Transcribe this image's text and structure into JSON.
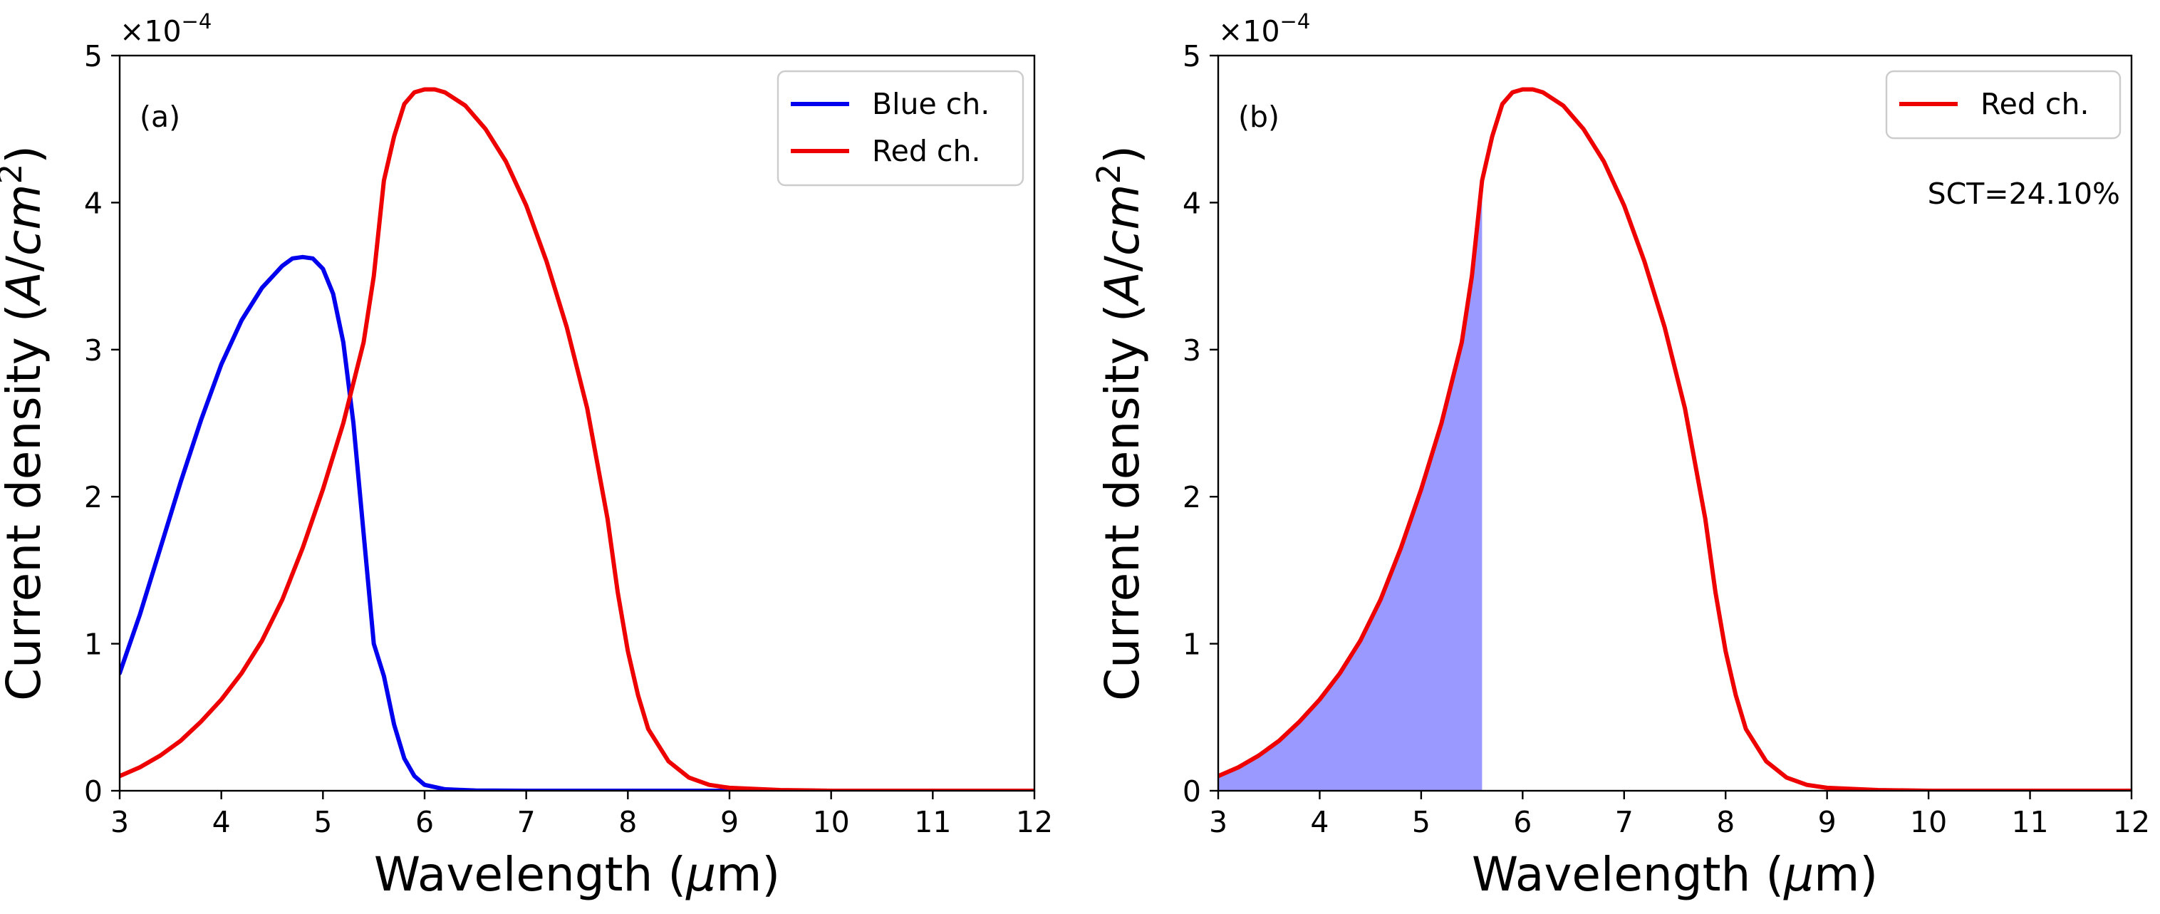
{
  "chart_data": [
    {
      "type": "line",
      "panel_label": "(a)",
      "xlabel": {
        "prefix": "Wavelength (",
        "mu": "μ",
        "unit": "m",
        "suffix": ")"
      },
      "ylabel": {
        "prefix": "Current density (",
        "unit_a": "A",
        "slash": "/",
        "unit_cm": "cm",
        "power": "2",
        "suffix": ")"
      },
      "y_offset": {
        "base": "×10",
        "exp": "−4"
      },
      "xlim": [
        3,
        12
      ],
      "ylim": [
        0,
        5
      ],
      "x_ticks": [
        "3",
        "4",
        "5",
        "6",
        "7",
        "8",
        "9",
        "10",
        "11",
        "12"
      ],
      "y_ticks": [
        "0",
        "1",
        "2",
        "3",
        "4",
        "5"
      ],
      "legend": {
        "position": "top-right",
        "entries": [
          "Blue ch.",
          "Red ch."
        ]
      },
      "series": [
        {
          "name": "Blue ch.",
          "color": "#0000ee",
          "x": [
            3.0,
            3.2,
            3.4,
            3.6,
            3.8,
            4.0,
            4.2,
            4.4,
            4.6,
            4.7,
            4.8,
            4.9,
            5.0,
            5.1,
            5.2,
            5.3,
            5.4,
            5.5,
            5.6,
            5.7,
            5.8,
            5.9,
            6.0,
            6.2,
            6.5,
            7.0,
            8.0,
            9.0,
            10.0,
            11.0,
            12.0
          ],
          "y": [
            0.8,
            1.2,
            1.65,
            2.1,
            2.52,
            2.9,
            3.2,
            3.42,
            3.57,
            3.62,
            3.63,
            3.62,
            3.55,
            3.38,
            3.05,
            2.5,
            1.75,
            1.0,
            0.78,
            0.45,
            0.22,
            0.1,
            0.04,
            0.01,
            0.002,
            0.0,
            0.0,
            0.0,
            0.0,
            0.0,
            0.0
          ]
        },
        {
          "name": "Red ch.",
          "color": "#ee0000",
          "x": [
            3.0,
            3.2,
            3.4,
            3.6,
            3.8,
            4.0,
            4.2,
            4.4,
            4.6,
            4.8,
            5.0,
            5.2,
            5.4,
            5.5,
            5.6,
            5.7,
            5.8,
            5.9,
            6.0,
            6.1,
            6.2,
            6.4,
            6.6,
            6.8,
            7.0,
            7.2,
            7.4,
            7.6,
            7.8,
            7.9,
            8.0,
            8.1,
            8.2,
            8.4,
            8.6,
            8.8,
            9.0,
            9.5,
            10.0,
            11.0,
            12.0
          ],
          "y": [
            0.1,
            0.16,
            0.24,
            0.34,
            0.47,
            0.62,
            0.8,
            1.02,
            1.3,
            1.65,
            2.05,
            2.5,
            3.05,
            3.5,
            4.15,
            4.45,
            4.67,
            4.75,
            4.77,
            4.77,
            4.75,
            4.66,
            4.5,
            4.28,
            3.98,
            3.6,
            3.15,
            2.6,
            1.85,
            1.35,
            0.95,
            0.65,
            0.42,
            0.2,
            0.09,
            0.04,
            0.02,
            0.005,
            0.0,
            0.0,
            0.0
          ]
        }
      ]
    },
    {
      "type": "area",
      "panel_label": "(b)",
      "xlabel": {
        "prefix": "Wavelength (",
        "mu": "μ",
        "unit": "m",
        "suffix": ")"
      },
      "ylabel": {
        "prefix": "Current density (",
        "unit_a": "A",
        "slash": "/",
        "unit_cm": "cm",
        "power": "2",
        "suffix": ")"
      },
      "y_offset": {
        "base": "×10",
        "exp": "−4"
      },
      "xlim": [
        3,
        12
      ],
      "ylim": [
        0,
        5
      ],
      "x_ticks": [
        "3",
        "4",
        "5",
        "6",
        "7",
        "8",
        "9",
        "10",
        "11",
        "12"
      ],
      "y_ticks": [
        "0",
        "1",
        "2",
        "3",
        "4",
        "5"
      ],
      "legend": {
        "position": "top-right",
        "entries": [
          "Red ch."
        ]
      },
      "annotation": "SCT=24.10%",
      "shaded_region": {
        "x_from": 3.0,
        "x_to": 5.6,
        "color": "#9999ff"
      },
      "series": [
        {
          "name": "Red ch.",
          "color": "#ee0000",
          "x": [
            3.0,
            3.2,
            3.4,
            3.6,
            3.8,
            4.0,
            4.2,
            4.4,
            4.6,
            4.8,
            5.0,
            5.2,
            5.4,
            5.5,
            5.6,
            5.7,
            5.8,
            5.9,
            6.0,
            6.1,
            6.2,
            6.4,
            6.6,
            6.8,
            7.0,
            7.2,
            7.4,
            7.6,
            7.8,
            7.9,
            8.0,
            8.1,
            8.2,
            8.4,
            8.6,
            8.8,
            9.0,
            9.5,
            10.0,
            11.0,
            12.0
          ],
          "y": [
            0.1,
            0.16,
            0.24,
            0.34,
            0.47,
            0.62,
            0.8,
            1.02,
            1.3,
            1.65,
            2.05,
            2.5,
            3.05,
            3.5,
            4.15,
            4.45,
            4.67,
            4.75,
            4.77,
            4.77,
            4.75,
            4.66,
            4.5,
            4.28,
            3.98,
            3.6,
            3.15,
            2.6,
            1.85,
            1.35,
            0.95,
            0.65,
            0.42,
            0.2,
            0.09,
            0.04,
            0.02,
            0.005,
            0.0,
            0.0,
            0.0
          ]
        }
      ]
    }
  ]
}
